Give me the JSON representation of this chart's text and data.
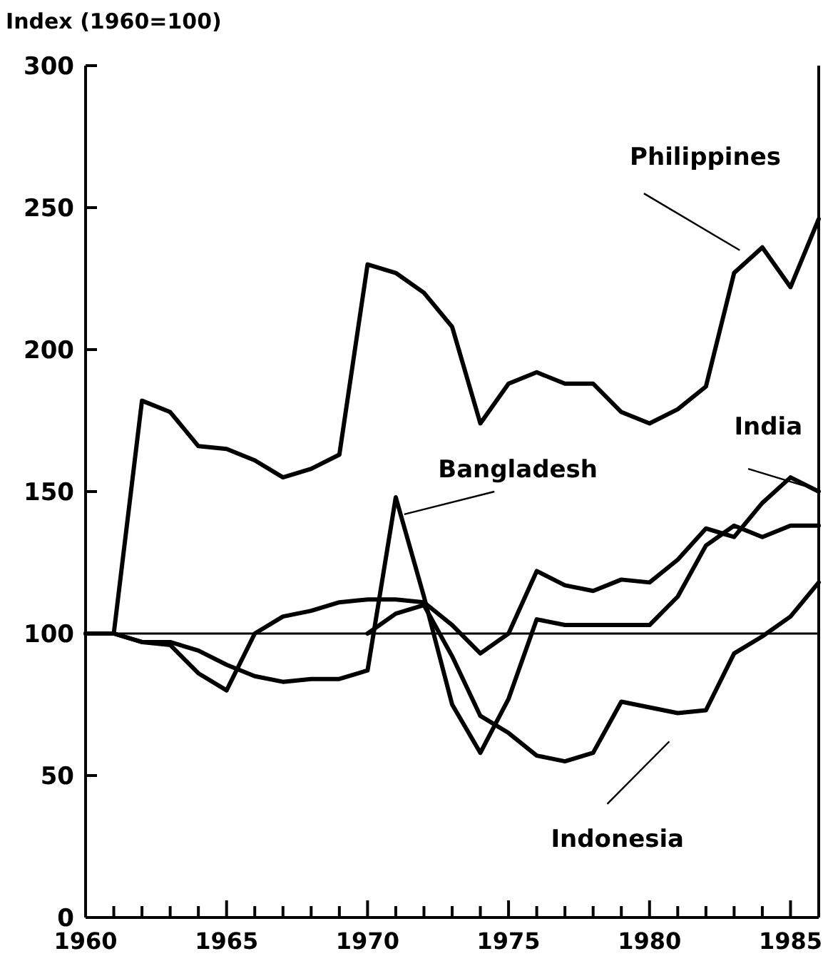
{
  "chart_data": {
    "type": "line",
    "ylabel": "Index (1960=100)",
    "x": [
      1960,
      1961,
      1962,
      1963,
      1964,
      1965,
      1966,
      1967,
      1968,
      1969,
      1970,
      1971,
      1972,
      1973,
      1974,
      1975,
      1976,
      1977,
      1978,
      1979,
      1980,
      1981,
      1982,
      1983,
      1984,
      1985,
      1986
    ],
    "series": [
      {
        "name": "Philippines",
        "color": "#000000",
        "values": [
          100,
          100,
          182,
          178,
          166,
          165,
          161,
          155,
          158,
          163,
          230,
          227,
          220,
          208,
          174,
          188,
          192,
          188,
          188,
          178,
          174,
          179,
          187,
          227,
          236,
          222,
          246
        ]
      },
      {
        "name": "India",
        "color": "#000000",
        "values": [
          100,
          100,
          97,
          96,
          86,
          80,
          100,
          106,
          108,
          111,
          112,
          112,
          111,
          103,
          93,
          100,
          122,
          117,
          115,
          119,
          118,
          126,
          137,
          134,
          146,
          155,
          150
        ]
      },
      {
        "name": "Bangladesh",
        "color": "#000000",
        "values": [
          100,
          100,
          97,
          97,
          94,
          89,
          85,
          83,
          84,
          84,
          87,
          148,
          113,
          75,
          58,
          77,
          105,
          103,
          103,
          103,
          103,
          113,
          131,
          138,
          134,
          138,
          138
        ]
      },
      {
        "name": "Indonesia",
        "color": "#000000",
        "values": [
          null,
          null,
          null,
          null,
          null,
          null,
          null,
          null,
          null,
          null,
          100,
          107,
          110,
          92,
          71,
          65,
          57,
          55,
          58,
          76,
          74,
          72,
          73,
          93,
          99,
          106,
          118
        ]
      }
    ],
    "xlim": [
      1960,
      1986
    ],
    "xticks": [
      1960,
      {
        "value": 1961,
        "label": null
      },
      {
        "value": 1962,
        "label": null
      },
      {
        "value": 1963,
        "label": null
      },
      {
        "value": 1964,
        "label": null
      },
      1965,
      {
        "value": 1966,
        "label": null
      },
      {
        "value": 1967,
        "label": null
      },
      {
        "value": 1968,
        "label": null
      },
      {
        "value": 1969,
        "label": null
      },
      1970,
      {
        "value": 1971,
        "label": null
      },
      {
        "value": 1972,
        "label": null
      },
      {
        "value": 1973,
        "label": null
      },
      {
        "value": 1974,
        "label": null
      },
      1975,
      {
        "value": 1976,
        "label": null
      },
      {
        "value": 1977,
        "label": null
      },
      {
        "value": 1978,
        "label": null
      },
      {
        "value": 1979,
        "label": null
      },
      1980,
      {
        "value": 1981,
        "label": null
      },
      {
        "value": 1982,
        "label": null
      },
      {
        "value": 1983,
        "label": null
      },
      {
        "value": 1984,
        "label": null
      },
      1985
    ],
    "ylim": [
      0,
      300
    ],
    "yticks": [
      0,
      50,
      100,
      150,
      200,
      250,
      300
    ],
    "ref_lines": [
      {
        "axis": "y",
        "value": 100
      }
    ],
    "grid": false,
    "marker": "none",
    "line_style": "solid"
  }
}
